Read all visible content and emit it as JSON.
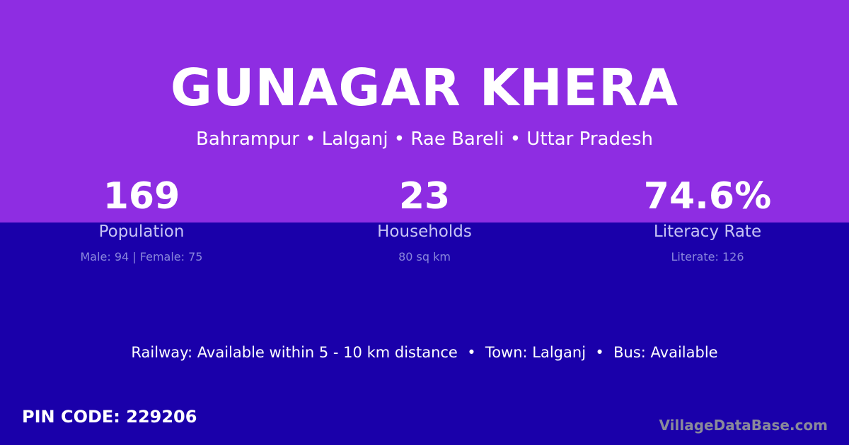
{
  "title": "GUNAGAR KHERA",
  "breadcrumb": "Bahrampur • Lalganj • Rae Bareli • Uttar Pradesh",
  "stats": [
    {
      "value": "169",
      "label": "Population",
      "detail": "Male: 94 | Female: 75"
    },
    {
      "value": "23",
      "label": "Households",
      "detail": "80 sq km"
    },
    {
      "value": "74.6%",
      "label": "Literacy Rate",
      "detail": "Literate: 126"
    }
  ],
  "info": "Railway: Available within 5 - 10 km distance  •  Town: Lalganj  •  Bus: Available",
  "pin": "PIN CODE: 229206",
  "brand": "VillageDataBase.com",
  "colors": {
    "top": "#8e2de2",
    "bottom": "#1a00aa"
  }
}
